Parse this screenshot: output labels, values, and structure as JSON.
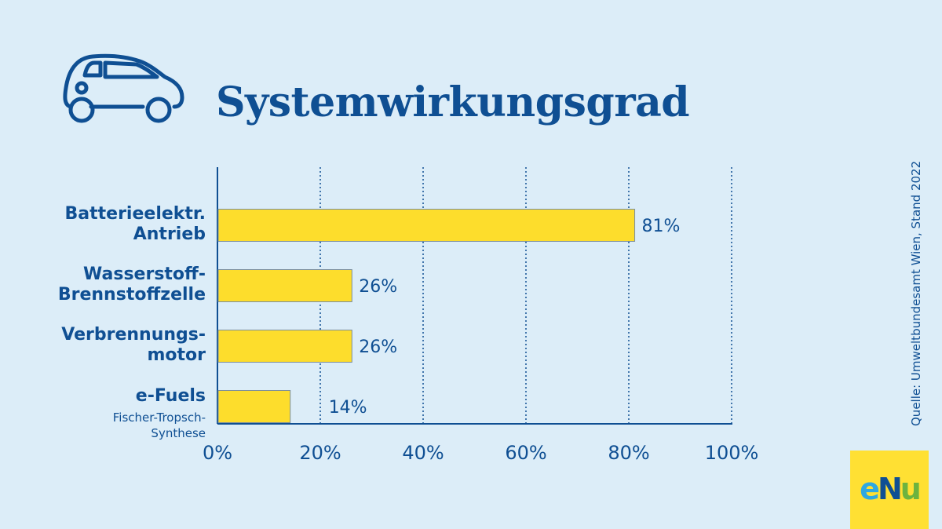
{
  "title": "Systemwirkungsgrad",
  "source": "Quelle: Umweltbundesamt Wien, Stand 2022",
  "logo": {
    "part1": "e",
    "part2": "N",
    "part3": "u"
  },
  "colors": {
    "bar": "#fddd2c",
    "text": "#0f4f93",
    "background": "#dcedf8",
    "logo_bg": "#ffe033"
  },
  "icons": {
    "header": "car-icon"
  },
  "chart_data": {
    "type": "bar",
    "orientation": "horizontal",
    "categories": [
      {
        "label_lines": [
          "Batterieelektr.",
          "Antrieb"
        ],
        "sub_lines": []
      },
      {
        "label_lines": [
          "Wasserstoff-",
          "Brennstoffzelle"
        ],
        "sub_lines": []
      },
      {
        "label_lines": [
          "Verbrennungs-",
          "motor"
        ],
        "sub_lines": []
      },
      {
        "label_lines": [
          "e-Fuels"
        ],
        "sub_lines": [
          "Fischer-Tropsch-",
          "Synthese"
        ]
      }
    ],
    "values": [
      81,
      26,
      26,
      14
    ],
    "value_labels": [
      "81%",
      "26%",
      "26%",
      "14%"
    ],
    "xlim": [
      0,
      100
    ],
    "xticks": [
      0,
      20,
      40,
      60,
      80,
      100
    ],
    "xtick_labels": [
      "0%",
      "20%",
      "40%",
      "60%",
      "80%",
      "100%"
    ],
    "grid": "vertical dotted"
  }
}
